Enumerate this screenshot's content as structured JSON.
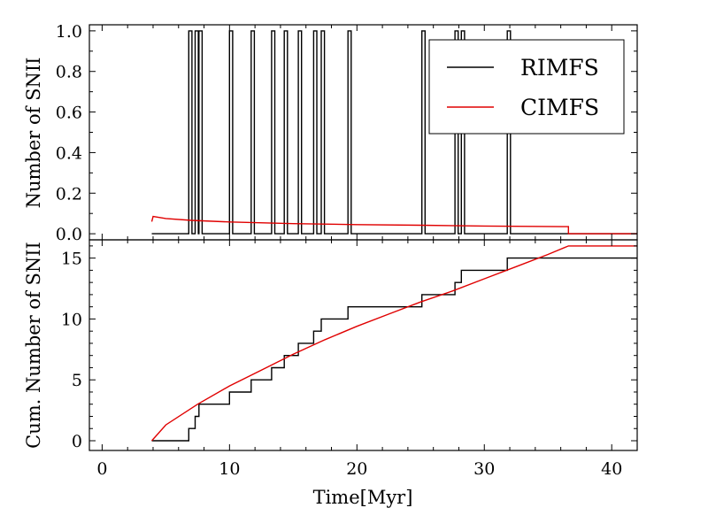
{
  "colors": {
    "rimfs": "#000000",
    "cimfs": "#e00000"
  },
  "chart_data": [
    {
      "type": "line",
      "panel": "top",
      "ylabel": "Number of SNII",
      "xlim": [
        -1,
        42
      ],
      "ylim": [
        -0.03,
        1.03
      ],
      "x_ticks": [
        0,
        10,
        20,
        30,
        40
      ],
      "y_ticks": [
        0.0,
        0.2,
        0.4,
        0.6,
        0.8,
        1.0
      ],
      "y_tick_labels": [
        "0.0",
        "0.2",
        "0.4",
        "0.6",
        "0.8",
        "1.0"
      ],
      "legend": {
        "position": "top-right",
        "entries": [
          "RIMFS",
          "CIMFS"
        ]
      },
      "series": [
        {
          "name": "RIMFS",
          "kind": "spikes",
          "x_start": 3.9,
          "x_end": 42,
          "spike_width": 0.25,
          "spike_times": [
            6.8,
            7.3,
            7.6,
            10.0,
            11.7,
            13.3,
            14.3,
            15.4,
            16.6,
            17.2,
            19.3,
            25.1,
            27.7,
            28.2,
            31.8
          ]
        },
        {
          "name": "CIMFS",
          "kind": "line",
          "x": [
            3.9,
            4.0,
            5.0,
            7.0,
            10.0,
            15.0,
            20.0,
            25.0,
            30.0,
            36.6,
            36.6,
            42.0
          ],
          "y": [
            0.06,
            0.085,
            0.075,
            0.066,
            0.058,
            0.05,
            0.045,
            0.042,
            0.038,
            0.035,
            0.0,
            0.0
          ]
        }
      ]
    },
    {
      "type": "line",
      "panel": "bottom",
      "xlabel": "Time[Myr]",
      "ylabel": "Cum. Number of SNII",
      "xlim": [
        -1,
        42
      ],
      "ylim": [
        -0.8,
        16.5
      ],
      "x_ticks": [
        0,
        10,
        20,
        30,
        40
      ],
      "x_tick_labels": [
        "0",
        "10",
        "20",
        "30",
        "40"
      ],
      "y_ticks": [
        0,
        5,
        10,
        15
      ],
      "y_tick_labels": [
        "0",
        "5",
        "10",
        "15"
      ],
      "series": [
        {
          "name": "RIMFS",
          "kind": "step",
          "x_start": 3.9,
          "x_end": 42,
          "step_times": [
            6.8,
            7.3,
            7.6,
            10.0,
            11.7,
            13.3,
            14.3,
            15.4,
            16.6,
            17.2,
            19.3,
            25.1,
            27.7,
            28.2,
            31.8
          ]
        },
        {
          "name": "CIMFS",
          "kind": "curve",
          "x": [
            3.9,
            5,
            7.5,
            10,
            12.5,
            15,
            17.5,
            20,
            22.5,
            25,
            27.5,
            30,
            32.5,
            35,
            36.6,
            42
          ],
          "y": [
            0,
            1.3,
            3.0,
            4.5,
            5.8,
            7.1,
            8.3,
            9.4,
            10.4,
            11.4,
            12.3,
            13.3,
            14.3,
            15.3,
            16.0,
            16.0
          ]
        }
      ]
    }
  ]
}
